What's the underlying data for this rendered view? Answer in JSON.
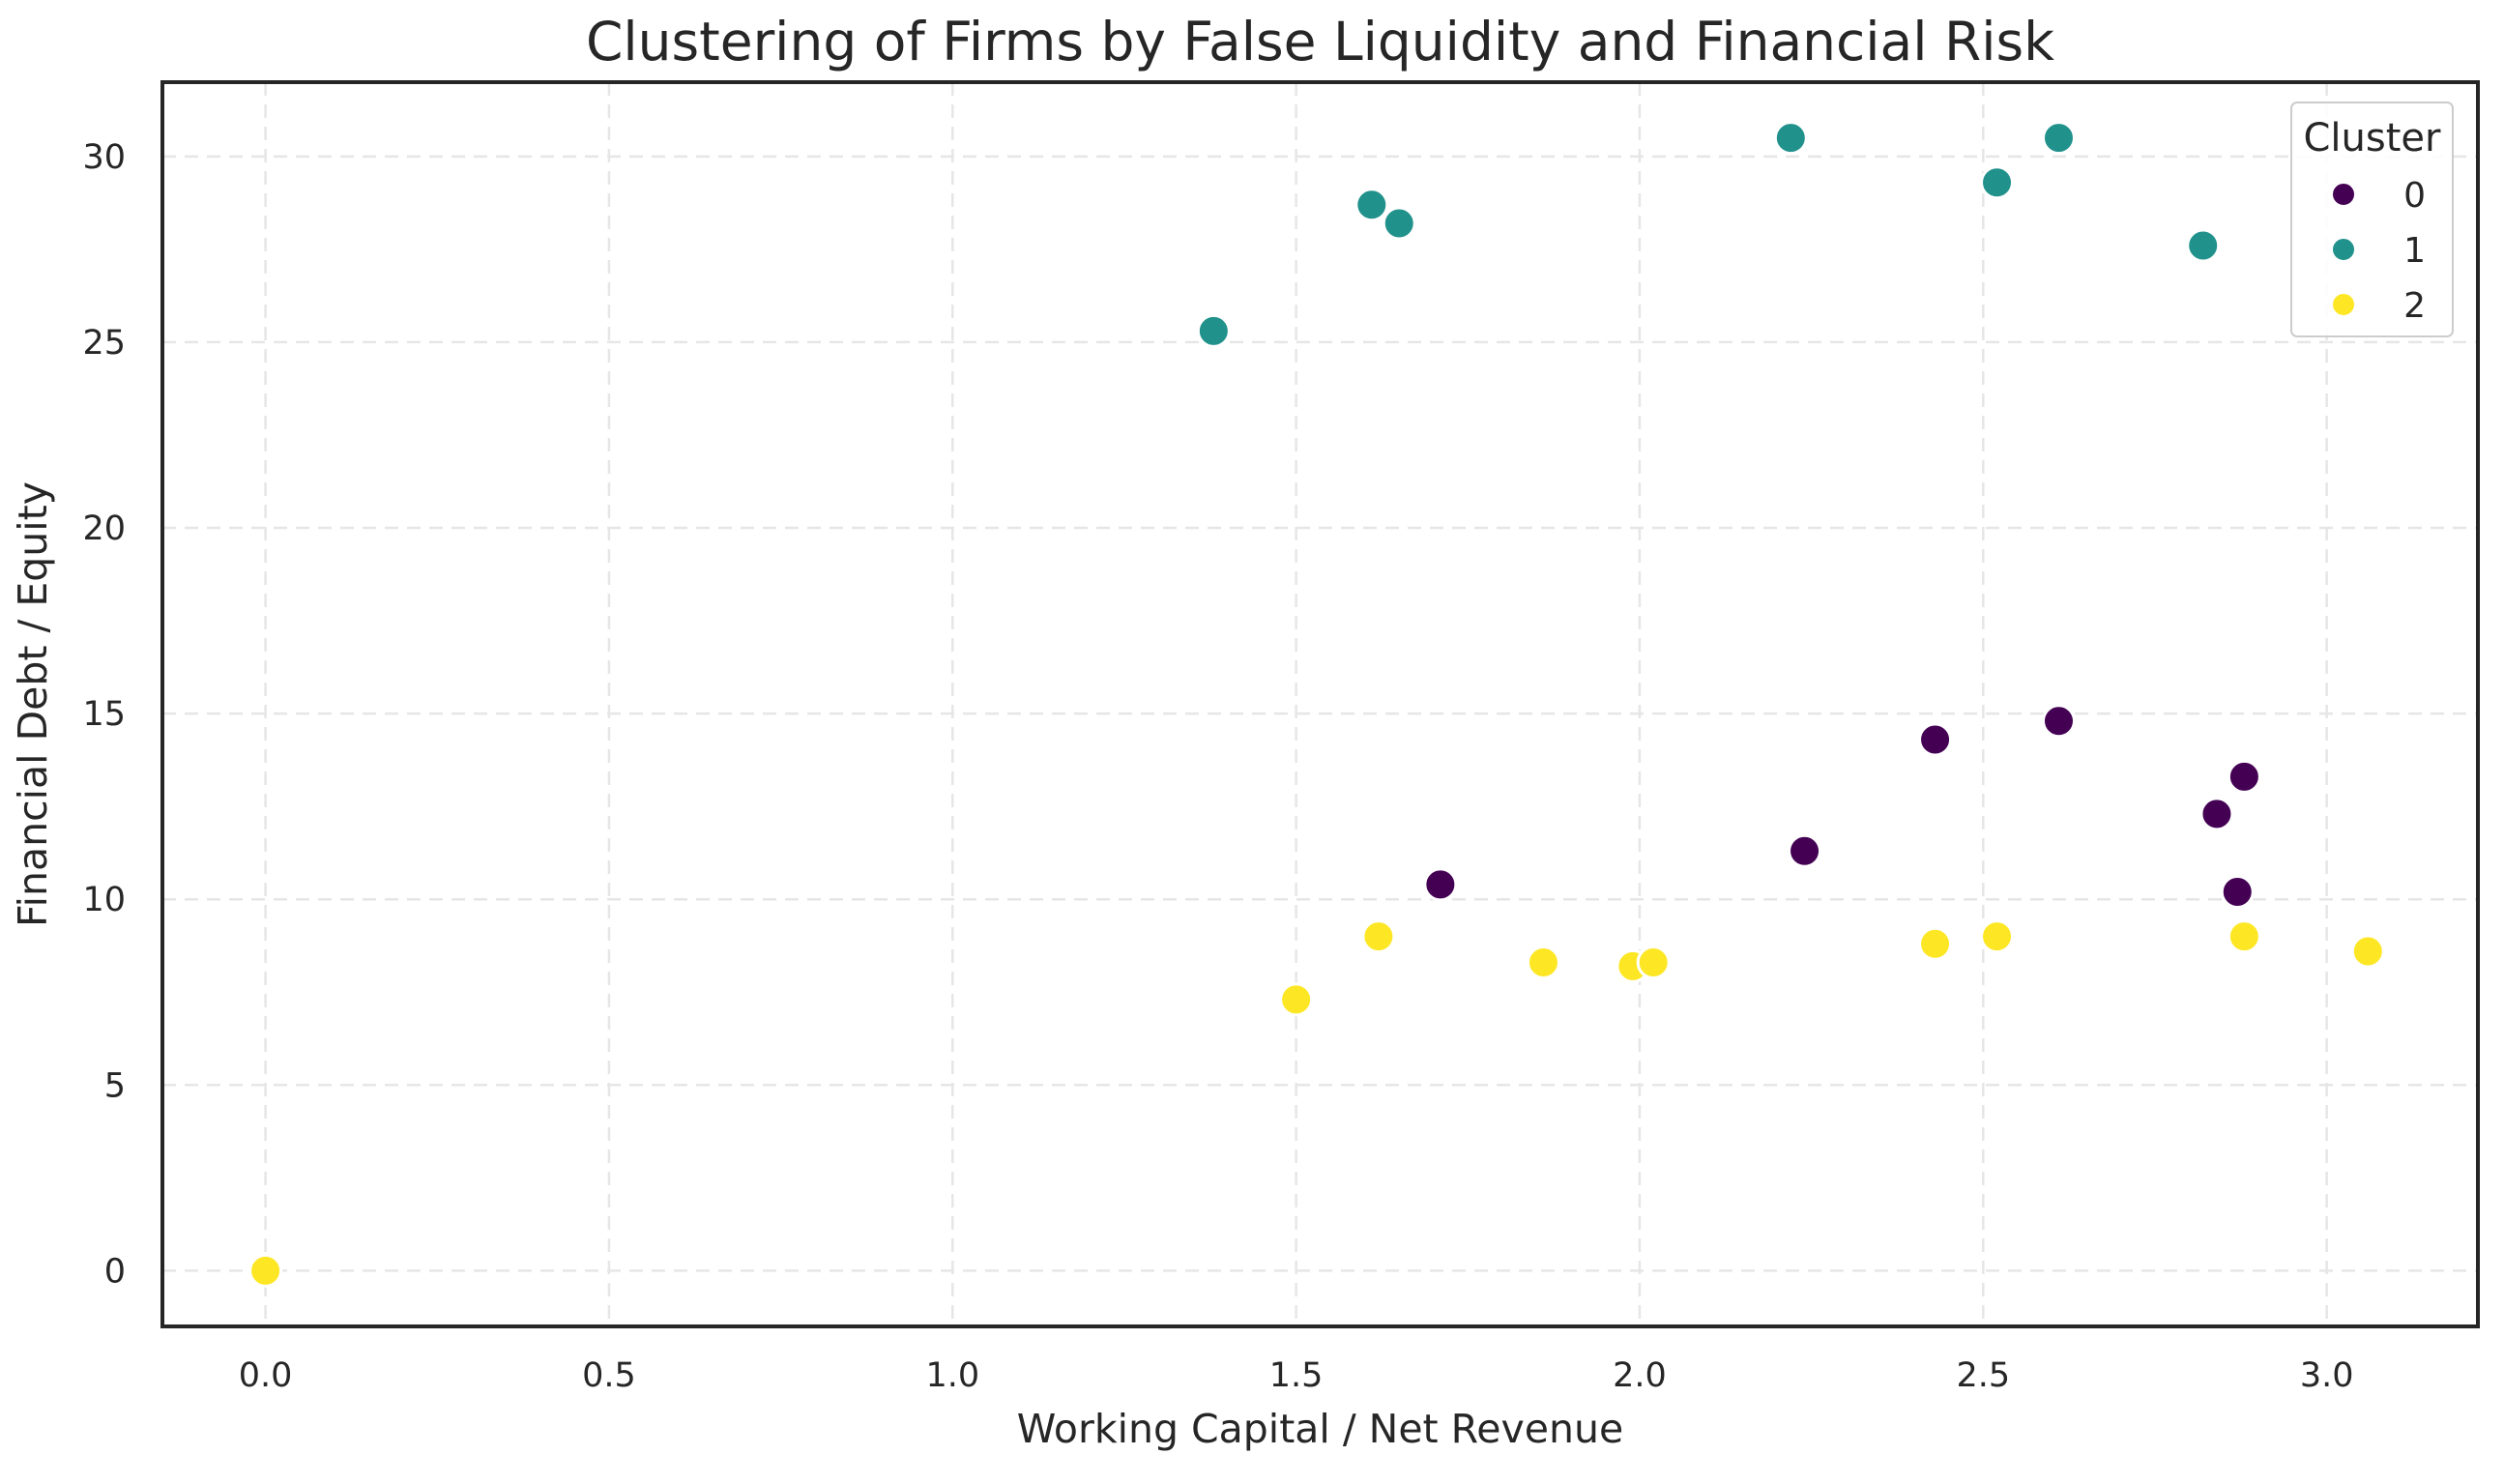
{
  "chart_data": {
    "type": "scatter",
    "title": "Clustering of Firms by False Liquidity and Financial Risk",
    "xlabel": "Working Capital / Net Revenue",
    "ylabel": "Financial Debt / Equity",
    "xlim": [
      -0.15,
      3.22
    ],
    "ylim": [
      -1.5,
      32.0
    ],
    "x_ticks": [
      0.0,
      0.5,
      1.0,
      1.5,
      2.0,
      2.5,
      3.0
    ],
    "x_tick_labels": [
      "0.0",
      "0.5",
      "1.0",
      "1.5",
      "2.0",
      "2.5",
      "3.0"
    ],
    "y_ticks": [
      0,
      5,
      10,
      15,
      20,
      25,
      30
    ],
    "y_tick_labels": [
      "0",
      "5",
      "10",
      "15",
      "20",
      "25",
      "30"
    ],
    "grid": true,
    "legend": {
      "title": "Cluster",
      "position": "top-right"
    },
    "series": [
      {
        "name": "0",
        "color": "#440154",
        "points": [
          {
            "x": 1.71,
            "y": 10.4
          },
          {
            "x": 2.24,
            "y": 11.3
          },
          {
            "x": 2.43,
            "y": 14.3
          },
          {
            "x": 2.61,
            "y": 14.8
          },
          {
            "x": 2.84,
            "y": 12.3
          },
          {
            "x": 2.88,
            "y": 13.3
          },
          {
            "x": 2.87,
            "y": 10.2
          }
        ]
      },
      {
        "name": "1",
        "color": "#21918c",
        "points": [
          {
            "x": 1.38,
            "y": 25.3
          },
          {
            "x": 1.61,
            "y": 28.7
          },
          {
            "x": 1.65,
            "y": 28.2
          },
          {
            "x": 2.22,
            "y": 30.5
          },
          {
            "x": 2.52,
            "y": 29.3
          },
          {
            "x": 2.61,
            "y": 30.5
          },
          {
            "x": 2.82,
            "y": 27.6
          }
        ]
      },
      {
        "name": "2",
        "color": "#fde725",
        "points": [
          {
            "x": 0.0,
            "y": 0.0
          },
          {
            "x": 1.5,
            "y": 7.3
          },
          {
            "x": 1.62,
            "y": 9.0
          },
          {
            "x": 1.86,
            "y": 8.3
          },
          {
            "x": 1.99,
            "y": 8.2
          },
          {
            "x": 2.02,
            "y": 8.3
          },
          {
            "x": 2.43,
            "y": 8.8
          },
          {
            "x": 2.52,
            "y": 9.0
          },
          {
            "x": 2.88,
            "y": 9.0
          },
          {
            "x": 3.06,
            "y": 8.6
          }
        ]
      }
    ]
  }
}
